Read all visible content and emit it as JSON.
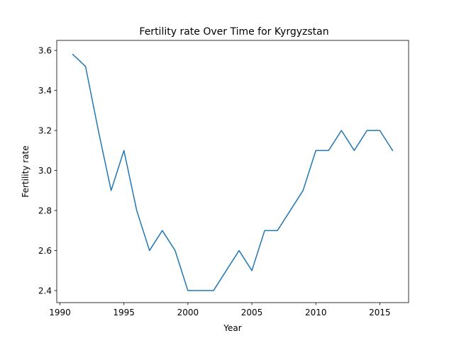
{
  "chart_data": {
    "type": "line",
    "title": "Fertility rate Over Time for Kyrgyzstan",
    "xlabel": "Year",
    "ylabel": "Fertility rate",
    "xlim": [
      1989.75,
      2017.25
    ],
    "ylim": [
      2.34,
      3.65
    ],
    "xticks": [
      1990,
      1995,
      2000,
      2005,
      2010,
      2015
    ],
    "xtick_labels": [
      "1990",
      "1995",
      "2000",
      "2005",
      "2010",
      "2015"
    ],
    "yticks": [
      2.4,
      2.6,
      2.8,
      3.0,
      3.2,
      3.4,
      3.6
    ],
    "ytick_labels": [
      "2.4",
      "2.6",
      "2.8",
      "3.0",
      "3.2",
      "3.4",
      "3.6"
    ],
    "grid": false,
    "legend": "none",
    "series": [
      {
        "color": "#1f77b4",
        "x": [
          1991,
          1992,
          1993,
          1994,
          1995,
          1996,
          1997,
          1998,
          1999,
          2000,
          2001,
          2002,
          2003,
          2004,
          2005,
          2006,
          2007,
          2008,
          2009,
          2010,
          2011,
          2012,
          2013,
          2014,
          2015,
          2016
        ],
        "y": [
          3.58,
          3.52,
          3.2,
          2.9,
          3.1,
          2.8,
          2.6,
          2.7,
          2.6,
          2.4,
          2.4,
          2.4,
          2.5,
          2.6,
          2.5,
          2.7,
          2.7,
          2.8,
          2.9,
          3.1,
          3.1,
          3.2,
          3.1,
          3.2,
          3.2,
          3.1
        ]
      }
    ]
  }
}
